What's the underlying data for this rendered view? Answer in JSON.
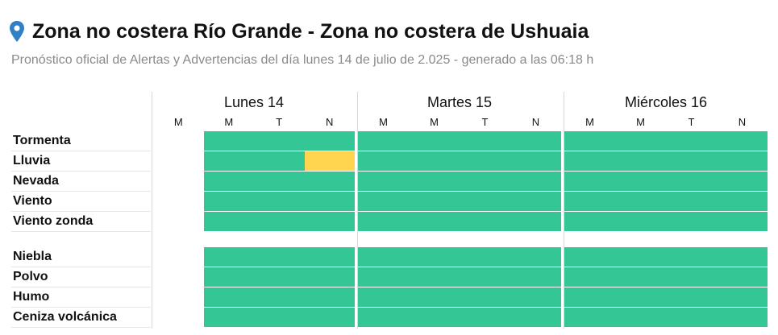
{
  "header": {
    "title": "Zona no costera Río Grande - Zona no costera de Ushuaia",
    "subtitle": "Pronóstico oficial de Alertas y Advertencias del día lunes 14 de julio de 2.025 - generado a las 06:18 h",
    "location_icon": "map-pin-icon"
  },
  "days": [
    {
      "label": "Lunes 14",
      "periods": [
        "M",
        "M",
        "T",
        "N"
      ]
    },
    {
      "label": "Martes 15",
      "periods": [
        "M",
        "M",
        "T",
        "N"
      ]
    },
    {
      "label": "Miércoles 16",
      "periods": [
        "M",
        "M",
        "T",
        "N"
      ]
    }
  ],
  "groups": [
    {
      "rows": [
        {
          "label": "Tormenta",
          "levels": [
            "none",
            "green",
            "green",
            "green",
            "green",
            "green",
            "green",
            "green",
            "green",
            "green",
            "green",
            "green"
          ]
        },
        {
          "label": "Lluvia",
          "levels": [
            "none",
            "green",
            "green",
            "yellow",
            "green",
            "green",
            "green",
            "green",
            "green",
            "green",
            "green",
            "green"
          ]
        },
        {
          "label": "Nevada",
          "levels": [
            "none",
            "green",
            "green",
            "green",
            "green",
            "green",
            "green",
            "green",
            "green",
            "green",
            "green",
            "green"
          ]
        },
        {
          "label": "Viento",
          "levels": [
            "none",
            "green",
            "green",
            "green",
            "green",
            "green",
            "green",
            "green",
            "green",
            "green",
            "green",
            "green"
          ]
        },
        {
          "label": "Viento zonda",
          "levels": [
            "none",
            "green",
            "green",
            "green",
            "green",
            "green",
            "green",
            "green",
            "green",
            "green",
            "green",
            "green"
          ]
        }
      ]
    },
    {
      "rows": [
        {
          "label": "Niebla",
          "levels": [
            "none",
            "green",
            "green",
            "green",
            "green",
            "green",
            "green",
            "green",
            "green",
            "green",
            "green",
            "green"
          ]
        },
        {
          "label": "Polvo",
          "levels": [
            "none",
            "green",
            "green",
            "green",
            "green",
            "green",
            "green",
            "green",
            "green",
            "green",
            "green",
            "green"
          ]
        },
        {
          "label": "Humo",
          "levels": [
            "none",
            "green",
            "green",
            "green",
            "green",
            "green",
            "green",
            "green",
            "green",
            "green",
            "green",
            "green"
          ]
        },
        {
          "label": "Ceniza volcánica",
          "levels": [
            "none",
            "green",
            "green",
            "green",
            "green",
            "green",
            "green",
            "green",
            "green",
            "green",
            "green",
            "green"
          ]
        }
      ]
    }
  ],
  "colors": {
    "green": "#34c795",
    "yellow": "#ffd54f"
  }
}
